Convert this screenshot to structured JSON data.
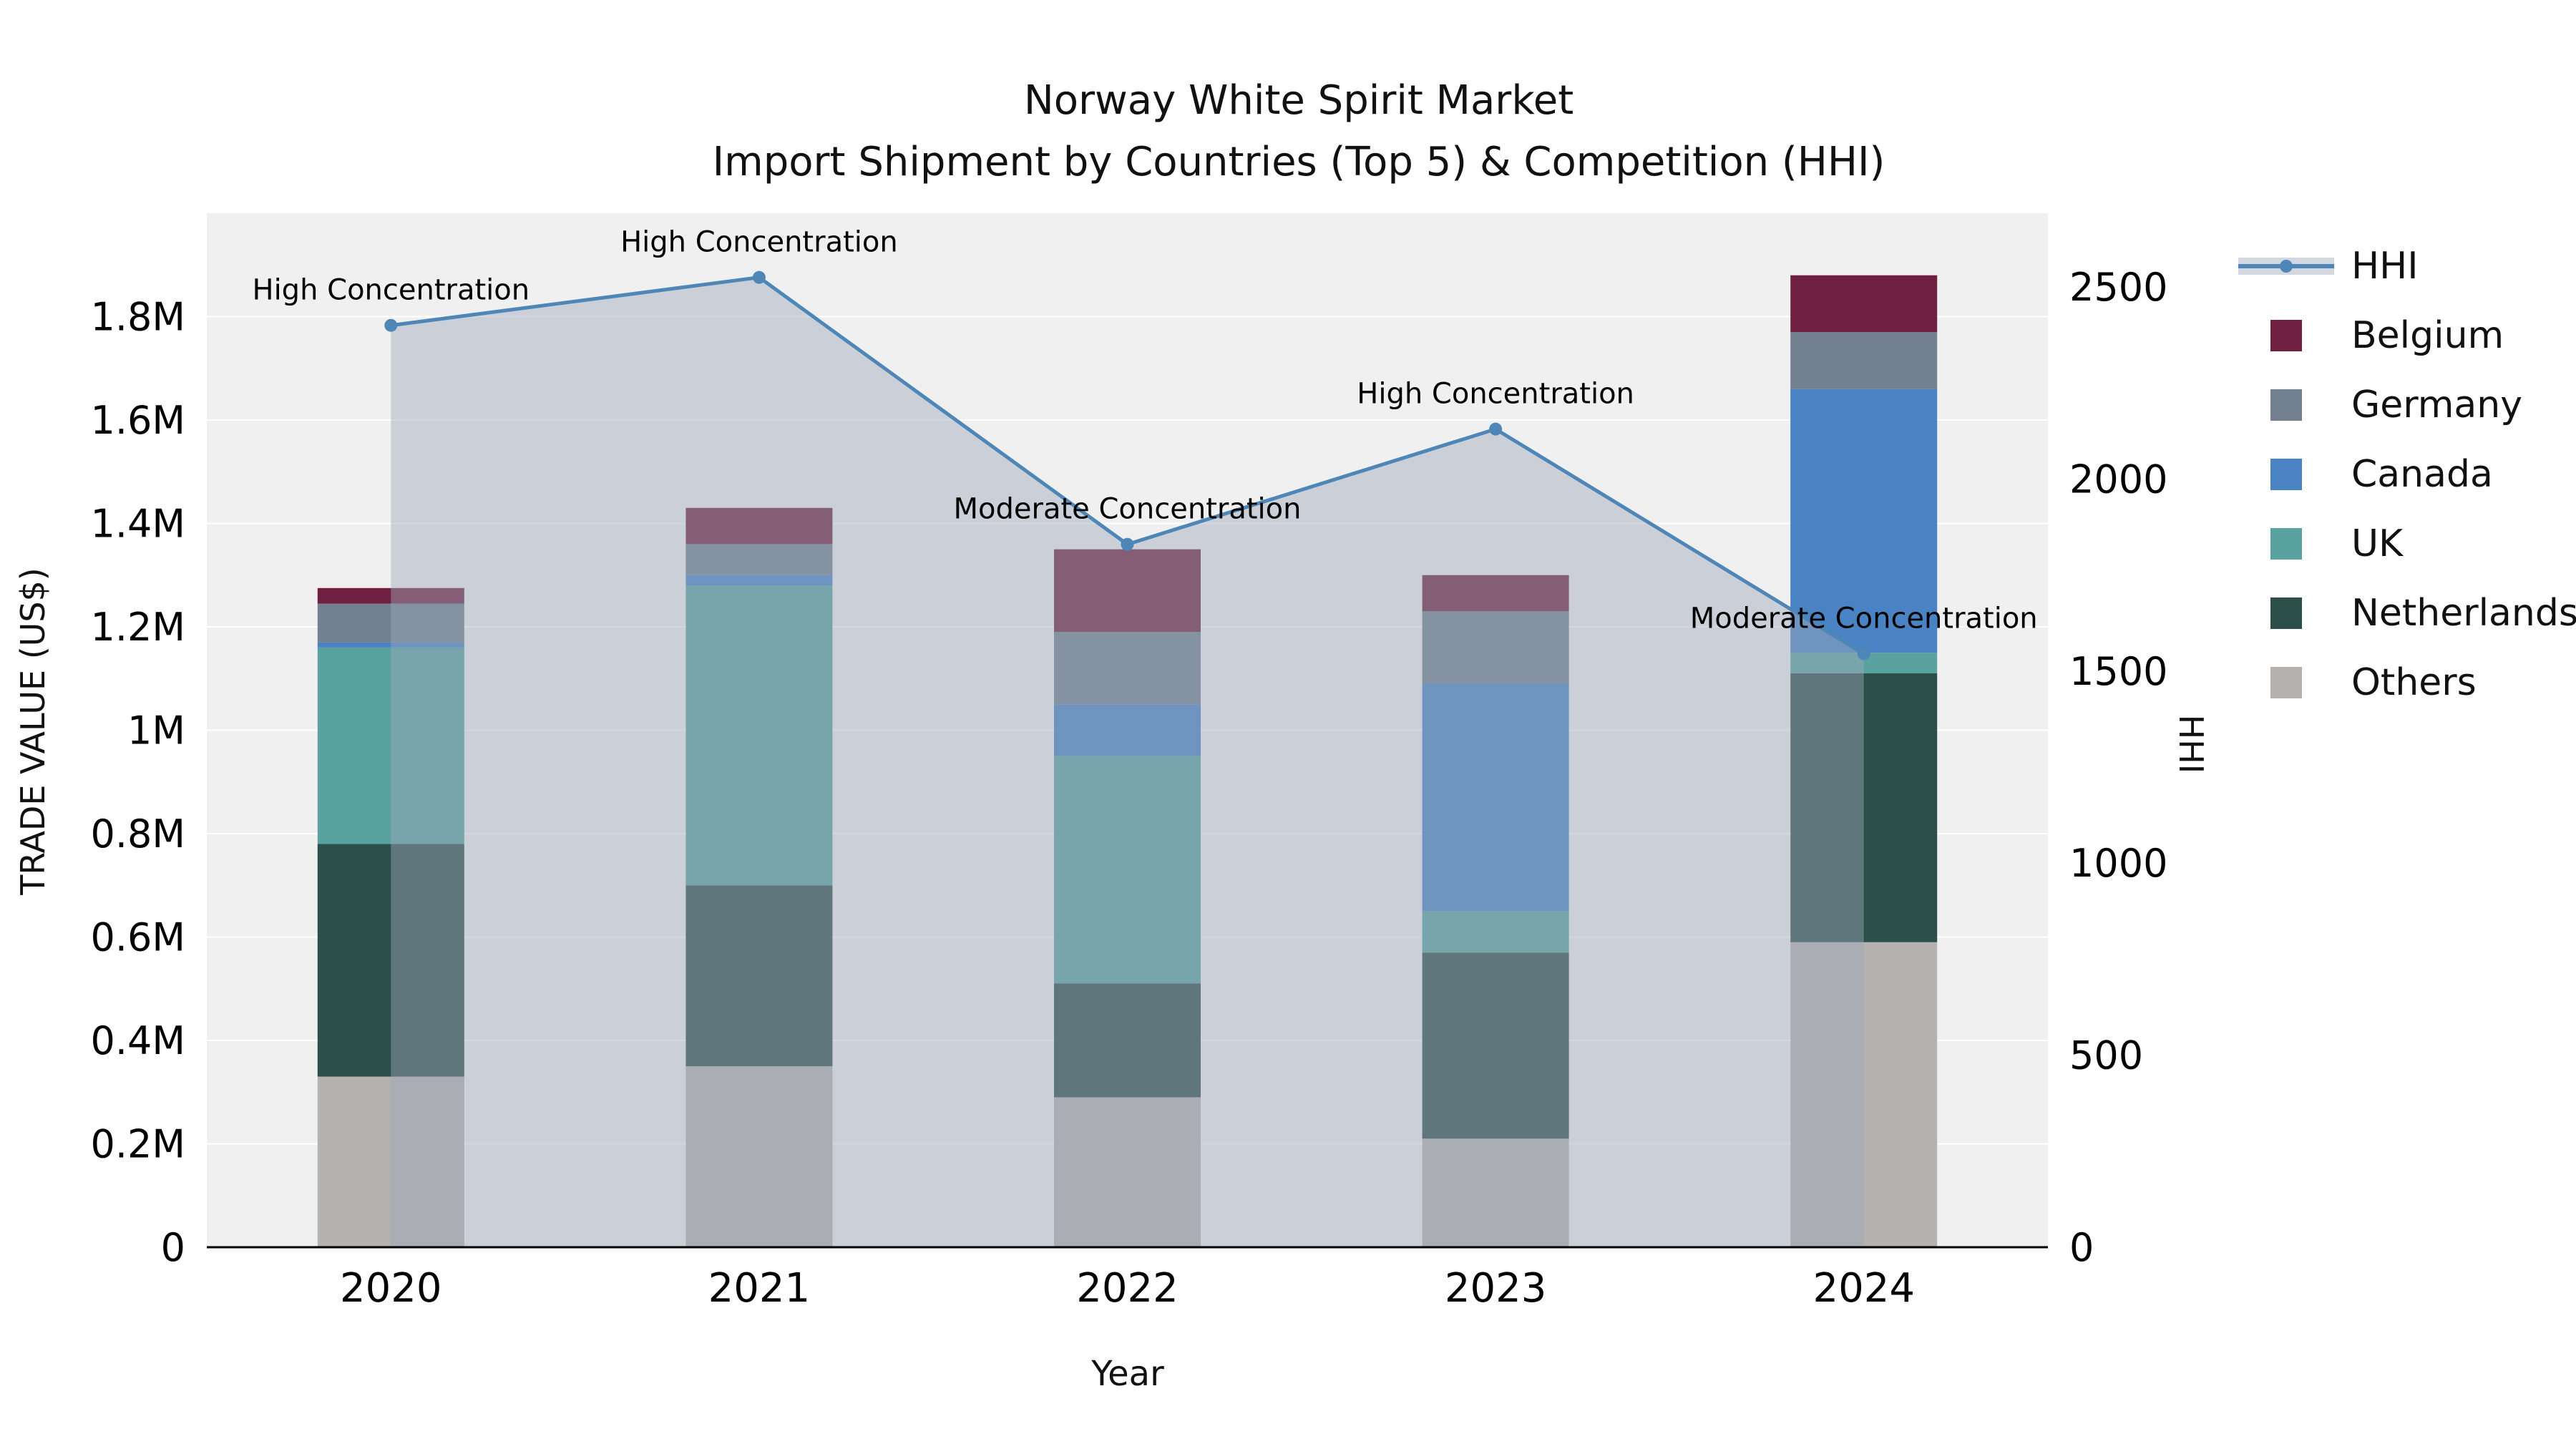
{
  "title": {
    "line1": "Norway White Spirit Market",
    "line2": "Import Shipment by Countries (Top 5) & Competition (HHI)"
  },
  "chart_data": {
    "type": "bar+line",
    "subtype": "stacked bars (trade value) with HHI line and shaded area on secondary axis",
    "x": [
      2020,
      2021,
      2022,
      2023,
      2024
    ],
    "bar_unit": "M US$",
    "bar_series": [
      {
        "name": "Others",
        "color": "#b5b1ae",
        "values": [
          0.33,
          0.35,
          0.29,
          0.21,
          0.59
        ]
      },
      {
        "name": "Netherlands",
        "color": "#2d4f4a",
        "values": [
          0.45,
          0.35,
          0.22,
          0.36,
          0.52
        ]
      },
      {
        "name": "UK",
        "color": "#5aa2a0",
        "values": [
          0.38,
          0.58,
          0.44,
          0.08,
          0.04
        ]
      },
      {
        "name": "Canada",
        "color": "#4a83c4",
        "values": [
          0.01,
          0.02,
          0.1,
          0.44,
          0.51
        ]
      },
      {
        "name": "Germany",
        "color": "#72808f",
        "values": [
          0.075,
          0.06,
          0.14,
          0.14,
          0.11
        ]
      },
      {
        "name": "Belgium",
        "color": "#6f2040",
        "values": [
          0.03,
          0.07,
          0.16,
          0.07,
          0.11
        ]
      }
    ],
    "line_series": {
      "name": "HHI",
      "color": "#4f86b8",
      "fill_color": "rgba(158,168,186,0.45)",
      "values": [
        2400,
        2525,
        1830,
        2130,
        1545
      ]
    },
    "annotations": [
      "High Concentration",
      "High Concentration",
      "Moderate Concentration",
      "High Concentration",
      "Moderate Concentration"
    ],
    "left_axis": {
      "label": "TRADE VALUE (US$)",
      "ticks": [
        0,
        0.2,
        0.4,
        0.6,
        0.8,
        1.0,
        1.2,
        1.4,
        1.6,
        1.8
      ],
      "tick_labels": [
        "0",
        "0.2M",
        "0.4M",
        "0.6M",
        "0.8M",
        "1M",
        "1.2M",
        "1.4M",
        "1.6M",
        "1.8M"
      ],
      "max": 2.0
    },
    "right_axis": {
      "label": "HHI",
      "ticks": [
        0,
        500,
        1000,
        1500,
        2000,
        2500
      ],
      "max": 2692
    },
    "x_axis": {
      "label": "Year",
      "tick_labels": [
        "2020",
        "2021",
        "2022",
        "2023",
        "2024"
      ]
    },
    "legend": [
      "HHI",
      "Belgium",
      "Germany",
      "Canada",
      "UK",
      "Netherlands",
      "Others"
    ],
    "style": {
      "plot_background": "#f0f0f0",
      "gridline_color": "#ffffff",
      "axis_line_color": "#000000",
      "grid": "horizontal only",
      "legend_position": "right, outside plot"
    }
  }
}
